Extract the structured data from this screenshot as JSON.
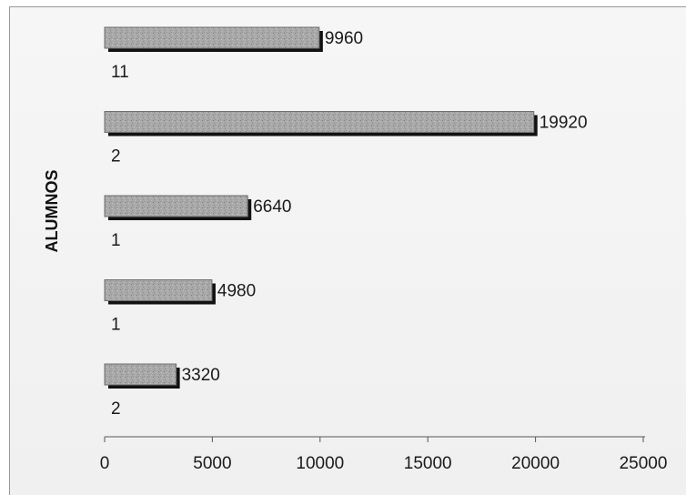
{
  "chart_data": {
    "type": "bar",
    "orientation": "horizontal",
    "categories": [
      "11",
      "2",
      "1",
      "1",
      "2"
    ],
    "values": [
      9960,
      19920,
      6640,
      4980,
      3320
    ],
    "data_labels": [
      "9960",
      "19920",
      "6640",
      "4980",
      "3320"
    ],
    "title": "",
    "xlabel": "",
    "ylabel": "ALUMNOS",
    "xlim": [
      0,
      25000
    ],
    "x_ticks": [
      0,
      5000,
      10000,
      15000,
      20000,
      25000
    ],
    "x_tick_labels": [
      "0",
      "5000",
      "10000",
      "15000",
      "20000",
      "25000"
    ],
    "grid": false,
    "legend": "none",
    "colors": {
      "bar_fill": "#a9a9a9",
      "bar_shadow": "#111111",
      "text": "#1a1a1a"
    }
  }
}
